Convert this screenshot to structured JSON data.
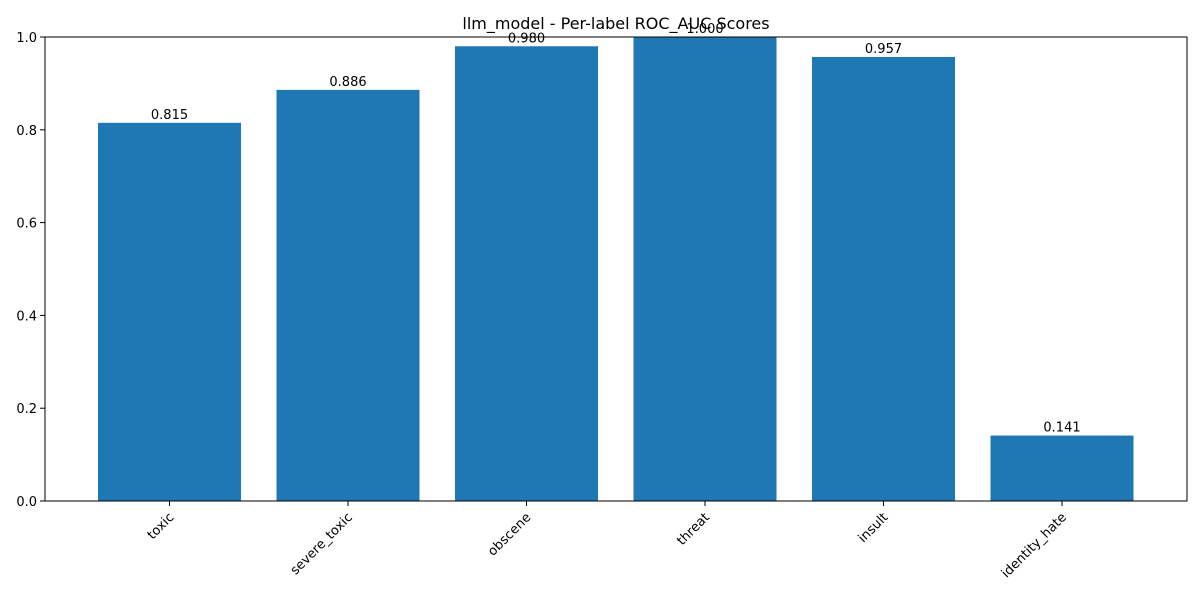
{
  "chart_data": {
    "type": "bar",
    "title": "llm_model - Per-label ROC_AUC Scores",
    "xlabel": "",
    "ylabel": "",
    "categories": [
      "toxic",
      "severe_toxic",
      "obscene",
      "threat",
      "insult",
      "identity_hate"
    ],
    "values": [
      0.815,
      0.886,
      0.98,
      1.0,
      0.957,
      0.141
    ],
    "value_labels": [
      "0.815",
      "0.886",
      "0.980",
      "1.000",
      "0.957",
      "0.141"
    ],
    "ylim": [
      0,
      1.0
    ],
    "yticks": [
      0.0,
      0.2,
      0.4,
      0.6,
      0.8,
      1.0
    ],
    "ytick_labels": [
      "0.0",
      "0.2",
      "0.4",
      "0.6",
      "0.8",
      "1.0"
    ],
    "xtick_rotation_deg": 45,
    "bar_color": "#1f77b4",
    "grid": false,
    "legend": "none"
  }
}
